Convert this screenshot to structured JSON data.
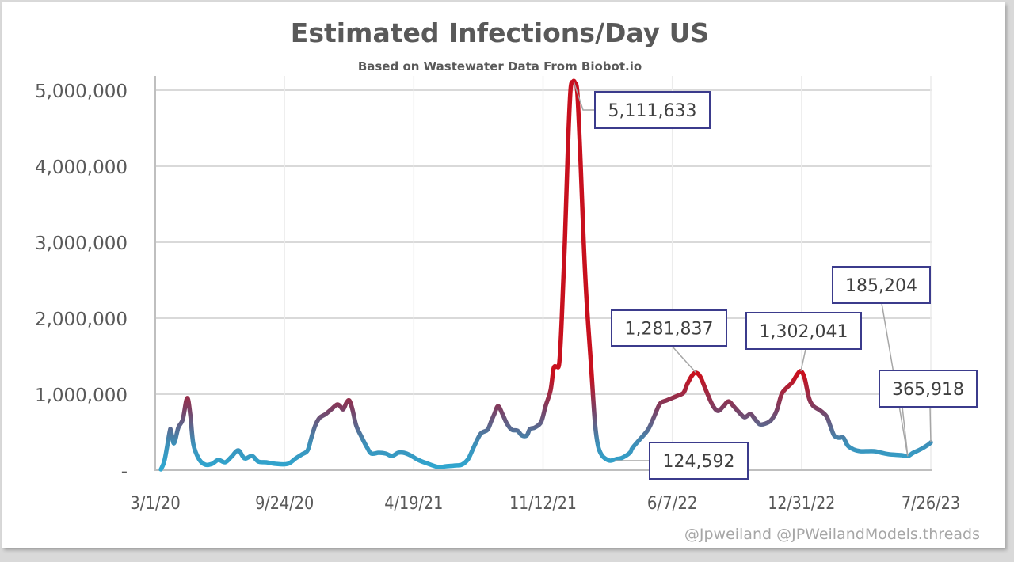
{
  "chart_data": {
    "type": "line",
    "title": "Estimated Infections/Day US",
    "subtitle": "Based on Wastewater Data From Biobot.io",
    "xlabel": "",
    "ylabel": "",
    "x_start_date": "3/1/20",
    "x_range_days": [
      0,
      1242
    ],
    "ylim": [
      0,
      5000000
    ],
    "grid": true,
    "legend": "none",
    "x_tick_labels": [
      "3/1/20",
      "9/24/20",
      "4/19/21",
      "11/12/21",
      "6/7/22",
      "12/31/22",
      "7/26/23"
    ],
    "x_tick_days": [
      0,
      207,
      414,
      621,
      828,
      1035,
      1242
    ],
    "y_ticks": [
      0,
      1000000,
      2000000,
      3000000,
      4000000,
      5000000
    ],
    "y_tick_labels": [
      "-",
      "1,000,000",
      "2,000,000",
      "3,000,000",
      "4,000,000",
      "5,000,000"
    ],
    "series": [
      {
        "name": "Estimated Infections/Day",
        "color_low": "#2ea9d2",
        "color_mid": "#7b3f63",
        "color_high": "#c8101e",
        "points": [
          [
            9,
            10000
          ],
          [
            15,
            135000
          ],
          [
            23,
            500000
          ],
          [
            25,
            520000
          ],
          [
            30,
            354000
          ],
          [
            37,
            562000
          ],
          [
            44,
            666000
          ],
          [
            51,
            947000
          ],
          [
            56,
            739000
          ],
          [
            61,
            343000
          ],
          [
            70,
            146000
          ],
          [
            80,
            73000
          ],
          [
            91,
            83000
          ],
          [
            101,
            135000
          ],
          [
            112,
            104000
          ],
          [
            122,
            177000
          ],
          [
            133,
            260000
          ],
          [
            143,
            156000
          ],
          [
            155,
            187000
          ],
          [
            165,
            114000
          ],
          [
            178,
            104000
          ],
          [
            193,
            83000
          ],
          [
            212,
            83000
          ],
          [
            225,
            156000
          ],
          [
            235,
            208000
          ],
          [
            244,
            260000
          ],
          [
            250,
            427000
          ],
          [
            256,
            583000
          ],
          [
            263,
            687000
          ],
          [
            273,
            739000
          ],
          [
            282,
            801000
          ],
          [
            291,
            864000
          ],
          [
            296,
            843000
          ],
          [
            301,
            801000
          ],
          [
            306,
            884000
          ],
          [
            311,
            916000
          ],
          [
            316,
            791000
          ],
          [
            322,
            583000
          ],
          [
            331,
            427000
          ],
          [
            339,
            302000
          ],
          [
            346,
            219000
          ],
          [
            358,
            229000
          ],
          [
            369,
            219000
          ],
          [
            379,
            187000
          ],
          [
            389,
            229000
          ],
          [
            398,
            229000
          ],
          [
            408,
            198000
          ],
          [
            421,
            135000
          ],
          [
            434,
            94000
          ],
          [
            453,
            42000
          ],
          [
            466,
            52000
          ],
          [
            481,
            62000
          ],
          [
            491,
            73000
          ],
          [
            501,
            146000
          ],
          [
            510,
            302000
          ],
          [
            521,
            479000
          ],
          [
            532,
            531000
          ],
          [
            538,
            645000
          ],
          [
            543,
            739000
          ],
          [
            549,
            843000
          ],
          [
            556,
            739000
          ],
          [
            563,
            614000
          ],
          [
            571,
            531000
          ],
          [
            580,
            520000
          ],
          [
            587,
            458000
          ],
          [
            595,
            458000
          ],
          [
            600,
            541000
          ],
          [
            608,
            562000
          ],
          [
            618,
            635000
          ],
          [
            625,
            843000
          ],
          [
            633,
            1051000
          ],
          [
            638,
            1342000
          ],
          [
            643,
            1363000
          ],
          [
            647,
            1415000
          ],
          [
            651,
            1988000
          ],
          [
            656,
            3028000
          ],
          [
            661,
            4277000
          ],
          [
            665,
            5005000
          ],
          [
            669,
            5111633
          ],
          [
            672,
            5099000
          ],
          [
            676,
            4953000
          ],
          [
            681,
            4069000
          ],
          [
            686,
            3028000
          ],
          [
            691,
            2196000
          ],
          [
            698,
            1363000
          ],
          [
            704,
            635000
          ],
          [
            709,
            323000
          ],
          [
            715,
            198000
          ],
          [
            722,
            146000
          ],
          [
            729,
            124592
          ],
          [
            738,
            146000
          ],
          [
            747,
            160000
          ],
          [
            760,
            229000
          ],
          [
            764,
            291000
          ],
          [
            776,
            406000
          ],
          [
            789,
            531000
          ],
          [
            798,
            687000
          ],
          [
            806,
            843000
          ],
          [
            811,
            895000
          ],
          [
            818,
            916000
          ],
          [
            827,
            947000
          ],
          [
            836,
            978000
          ],
          [
            846,
            1020000
          ],
          [
            852,
            1134000
          ],
          [
            860,
            1250000
          ],
          [
            866,
            1281837
          ],
          [
            873,
            1228000
          ],
          [
            882,
            1051000
          ],
          [
            892,
            864000
          ],
          [
            901,
            780000
          ],
          [
            910,
            843000
          ],
          [
            918,
            905000
          ],
          [
            926,
            843000
          ],
          [
            935,
            760000
          ],
          [
            944,
            697000
          ],
          [
            953,
            739000
          ],
          [
            960,
            676000
          ],
          [
            968,
            604000
          ],
          [
            977,
            614000
          ],
          [
            986,
            656000
          ],
          [
            995,
            780000
          ],
          [
            1003,
            999000
          ],
          [
            1011,
            1082000
          ],
          [
            1020,
            1155000
          ],
          [
            1028,
            1259000
          ],
          [
            1034,
            1302041
          ],
          [
            1040,
            1207000
          ],
          [
            1047,
            947000
          ],
          [
            1054,
            843000
          ],
          [
            1064,
            791000
          ],
          [
            1075,
            708000
          ],
          [
            1081,
            583000
          ],
          [
            1087,
            458000
          ],
          [
            1094,
            427000
          ],
          [
            1102,
            427000
          ],
          [
            1109,
            323000
          ],
          [
            1119,
            271000
          ],
          [
            1129,
            250000
          ],
          [
            1138,
            250000
          ],
          [
            1151,
            250000
          ],
          [
            1163,
            229000
          ],
          [
            1176,
            208000
          ],
          [
            1195,
            198000
          ],
          [
            1205,
            185204
          ],
          [
            1214,
            229000
          ],
          [
            1227,
            281000
          ],
          [
            1239,
            343000
          ],
          [
            1242,
            365918
          ]
        ]
      }
    ],
    "annotations": [
      {
        "label": "5,111,633",
        "value": 5111633,
        "day": 669
      },
      {
        "label": "124,592",
        "value": 124592,
        "day": 729
      },
      {
        "label": "1,281,837",
        "value": 1281837,
        "day": 866
      },
      {
        "label": "1,302,041",
        "value": 1302041,
        "day": 1034
      },
      {
        "label": "185,204",
        "value": 185204,
        "day": 1205
      },
      {
        "label": "365,918",
        "value": 365918,
        "day": 1242
      }
    ],
    "credit": "@Jpweiland @JPWeilandModels.threads"
  },
  "colors": {
    "border": "#3b3b8c",
    "grid": "#d9d9d9",
    "text": "#595959",
    "credit": "#a6a6a6"
  }
}
